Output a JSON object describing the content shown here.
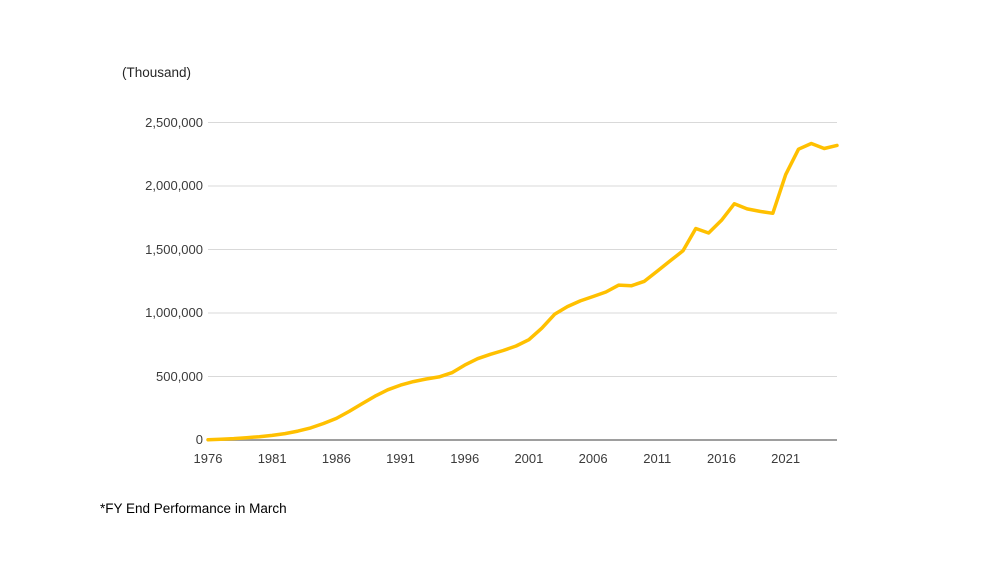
{
  "chart": {
    "unit_label": "(Thousand)",
    "footnote": "*FY End Performance in March"
  },
  "chart_data": {
    "type": "line",
    "title": "",
    "unit_label": "(Thousand)",
    "footnote": "*FY End Performance in March",
    "legend": "none",
    "grid": "horizontal-only",
    "line_color": "#FFC000",
    "gridline_color": "#D9D9D9",
    "axis_color": "#9e9e9e",
    "label_color": "#3b3b3b",
    "xlim": [
      1976,
      2025
    ],
    "ylim": [
      0,
      2500000
    ],
    "x_tick_years": [
      1976,
      1981,
      1986,
      1991,
      1996,
      2001,
      2006,
      2011,
      2016,
      2021
    ],
    "x_tick_labels": [
      "1976",
      "1981",
      "1986",
      "1991",
      "1996",
      "2001",
      "2006",
      "2011",
      "2016",
      "2021"
    ],
    "y_ticks": [
      0,
      500000,
      1000000,
      1500000,
      2000000,
      2500000
    ],
    "y_tick_labels": [
      "0",
      "500,000",
      "1,000,000",
      "1,500,000",
      "2,000,000",
      "2,500,000"
    ],
    "x": [
      1976,
      1977,
      1978,
      1979,
      1980,
      1981,
      1982,
      1983,
      1984,
      1985,
      1986,
      1987,
      1988,
      1989,
      1990,
      1991,
      1992,
      1993,
      1994,
      1995,
      1996,
      1997,
      1998,
      1999,
      2000,
      2001,
      2002,
      2003,
      2004,
      2005,
      2006,
      2007,
      2008,
      2009,
      2010,
      2011,
      2012,
      2013,
      2014,
      2015,
      2016,
      2017,
      2018,
      2019,
      2020,
      2021,
      2022,
      2023,
      2024,
      2025
    ],
    "values": [
      2000,
      6000,
      11000,
      18000,
      26000,
      36000,
      50000,
      70000,
      95000,
      130000,
      170000,
      225000,
      285000,
      345000,
      395000,
      432000,
      460000,
      480000,
      497000,
      530000,
      590000,
      640000,
      675000,
      705000,
      740000,
      790000,
      880000,
      990000,
      1050000,
      1095000,
      1130000,
      1165000,
      1220000,
      1215000,
      1250000,
      1330000,
      1410000,
      1490000,
      1665000,
      1630000,
      1730000,
      1860000,
      1820000,
      1800000,
      1785000,
      2090000,
      2290000,
      2335000,
      2295000,
      2320000
    ]
  }
}
